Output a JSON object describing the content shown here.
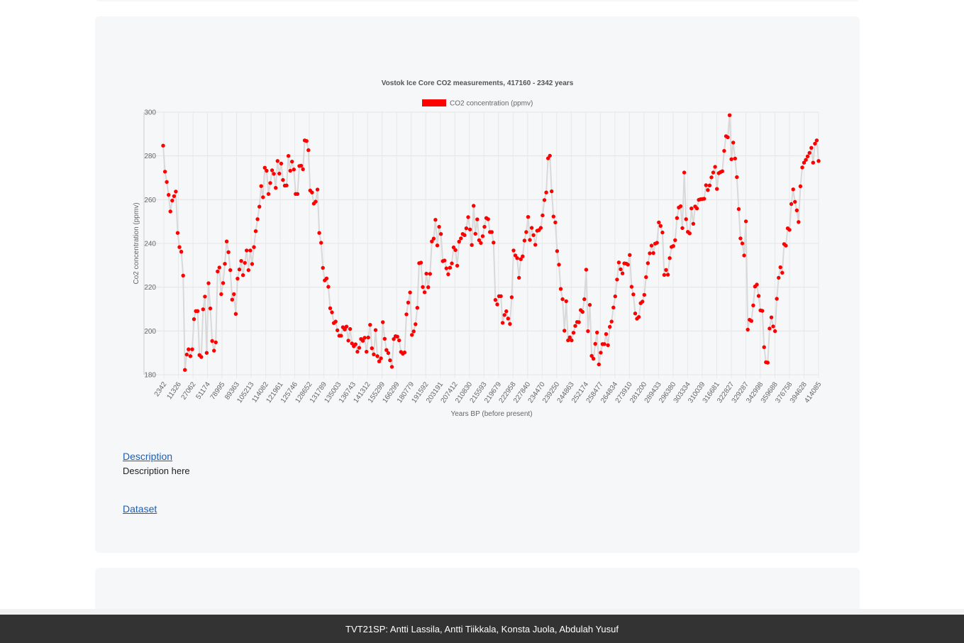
{
  "description_link": "Description",
  "description_text": "Description here",
  "dataset_link": "Dataset",
  "footer": "TVT21SP: Antti Lassila, Antti Tiikkala, Konsta Juola, Abdulah Yusuf",
  "chart_data": {
    "type": "line",
    "title": "Vostok Ice Core CO2 measurements, 417160 - 2342 years",
    "xlabel": "Years BP (before present)",
    "ylabel": "Co2 concentration (ppmv)",
    "ylim": [
      180,
      300
    ],
    "yticks": [
      180,
      200,
      220,
      240,
      260,
      280,
      300
    ],
    "grid": true,
    "legend_position": "top-center",
    "point_color": "#ff0000",
    "line_color": "#d9d9d9",
    "x_tick_labels": [
      "2342",
      "11326",
      "27062",
      "51174",
      "78995",
      "89363",
      "105213",
      "114082",
      "121961",
      "125746",
      "128652",
      "131789",
      "135003",
      "136743",
      "141312",
      "155299",
      "166299",
      "180779",
      "191592",
      "203191",
      "207412",
      "210830",
      "215593",
      "219679",
      "222958",
      "227840",
      "234470",
      "239250",
      "244863",
      "252174",
      "258477",
      "264834",
      "273910",
      "281200",
      "289433",
      "296380",
      "303334",
      "310039",
      "316681",
      "322827",
      "329287",
      "342998",
      "359688",
      "376758",
      "394628",
      "414085"
    ],
    "series": [
      {
        "name": "CO2 concentration (ppmv)",
        "values": [
          284.7,
          272.8,
          268.1,
          262.2,
          254.6,
          259.6,
          261.6,
          263.7,
          244.8,
          238.3,
          236.2,
          225.3,
          182.2,
          189.2,
          191.6,
          188.5,
          191.6,
          205.4,
          209.1,
          209.1,
          189.0,
          188.1,
          209.9,
          215.7,
          190.0,
          221.8,
          210.3,
          195.4,
          191.0,
          194.8,
          227.2,
          229.0,
          216.8,
          221.9,
          230.7,
          240.9,
          236.0,
          227.8,
          214.3,
          216.8,
          207.8,
          223.9,
          228.1,
          232.0,
          225.5,
          231.1,
          236.8,
          227.8,
          236.8,
          230.6,
          238.3,
          245.6,
          251.1,
          256.8,
          266.2,
          261.1,
          274.6,
          273.2,
          262.6,
          267.6,
          273.4,
          271.8,
          265.4,
          277.7,
          271.9,
          276.5,
          269.0,
          266.4,
          266.5,
          280.0,
          273.2,
          277.4,
          273.8,
          262.6,
          262.6,
          275.4,
          275.5,
          273.9,
          287.1,
          286.8,
          282.6,
          264.2,
          263.3,
          258.2,
          259.1,
          264.6,
          244.8,
          240.3,
          228.8,
          223.1,
          224.0,
          220.2,
          210.4,
          208.5,
          203.6,
          204.3,
          200.3,
          197.8,
          197.8,
          201.7,
          200.7,
          202.0,
          195.6,
          200.9,
          194.3,
          193.0,
          193.9,
          190.5,
          192.3,
          196.3,
          195.5,
          196.9,
          190.5,
          197.0,
          202.8,
          192.1,
          189.3,
          200.4,
          188.5,
          186.1,
          187.5,
          204.0,
          196.4,
          191.3,
          189.9,
          186.6,
          183.6,
          196.3,
          197.6,
          197.4,
          195.7,
          190.4,
          189.6,
          190.2,
          207.6,
          213.0,
          217.6,
          198.2,
          199.8,
          203.1,
          210.6,
          231.0,
          231.2,
          220.1,
          217.7,
          226.2,
          220.0,
          226.1,
          240.9,
          242.2,
          250.8,
          239.1,
          247.6,
          244.3,
          231.9,
          232.2,
          228.6,
          225.9,
          228.9,
          230.9,
          238.2,
          237.0,
          229.8,
          240.8,
          242.3,
          244.3,
          243.8,
          246.9,
          252.0,
          246.4,
          239.3,
          257.2,
          244.4,
          251.0,
          241.5,
          240.2,
          243.3,
          247.6,
          251.6,
          251.1,
          245.2,
          245.2,
          240.4,
          214.2,
          212.1,
          215.9,
          215.9,
          203.7,
          207.3,
          209.0,
          205.7,
          203.2,
          215.4,
          236.8,
          234.5,
          233.3,
          224.3,
          232.8,
          234.1,
          241.3,
          245.2,
          252.1,
          241.6,
          247.1,
          243.8,
          239.4,
          245.8,
          246.1,
          247.1,
          252.8,
          259.8,
          263.3,
          278.9,
          280.1,
          263.8,
          252.3,
          249.6,
          236.5,
          230.3,
          219.2,
          214.5,
          200.1,
          213.6,
          195.7,
          197.1,
          195.7,
          199.2,
          202.3,
          204.1,
          204.0,
          209.5,
          208.7,
          214.5,
          228.0,
          199.9,
          211.9,
          188.6,
          187.3,
          194.1,
          199.3,
          184.7,
          190.1,
          194.0,
          194.0,
          198.6,
          193.5,
          201.9,
          204.3,
          210.7,
          215.8,
          223.5,
          231.3,
          228.2,
          226.3,
          230.9,
          230.8,
          230.3,
          234.7,
          220.2,
          216.7,
          208.0,
          205.6,
          206.4,
          212.7,
          213.4,
          216.5,
          224.6,
          231.0,
          235.5,
          239.0,
          235.6,
          239.9,
          240.3,
          249.6,
          248.0,
          245.0,
          225.6,
          227.9,
          225.7,
          233.3,
          238.4,
          238.8,
          241.5,
          251.6,
          256.4,
          257.0,
          247.0,
          272.4,
          251.1,
          245.3,
          244.6,
          256.0,
          249.0,
          256.9,
          256.0,
          259.9,
          260.2,
          260.3,
          260.4,
          266.6,
          264.4,
          266.5,
          270.2,
          272.4,
          275.0,
          264.9,
          272.1,
          272.6,
          273.0,
          282.3,
          289.0,
          288.5,
          298.6,
          278.5,
          286.1,
          278.8,
          270.3,
          255.7,
          242.3,
          240.0,
          234.5,
          250.1,
          200.6,
          205.1,
          204.6,
          211.7,
          220.3,
          221.2,
          216.0,
          209.4,
          209.2,
          192.6,
          185.7,
          185.5,
          201.1,
          206.2,
          202.1,
          199.9,
          214.7,
          224.3,
          229.1,
          226.6,
          239.7,
          239.0,
          246.9,
          246.2,
          258.0,
          264.7,
          259.0,
          255.1,
          249.8,
          266.1,
          274.7,
          276.9,
          278.2,
          279.8,
          281.4,
          283.7,
          276.9,
          285.6,
          287.1,
          277.7
        ]
      }
    ]
  }
}
